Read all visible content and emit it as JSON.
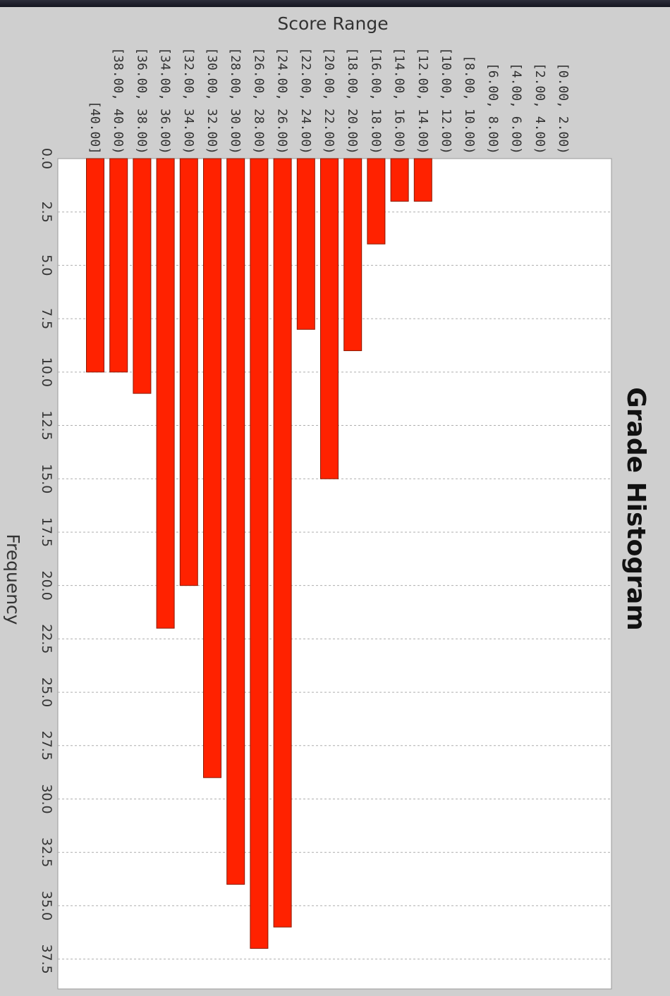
{
  "chart_data": {
    "type": "bar",
    "orientation": "rotated-90-clockwise",
    "title": "Grade Histogram",
    "xlabel": "Score Range",
    "ylabel": "Frequency",
    "categories": [
      "[40.00]",
      "[38.00, 40.00)",
      "[36.00, 38.00)",
      "[34.00, 36.00)",
      "[32.00, 34.00)",
      "[30.00, 32.00)",
      "[28.00, 30.00)",
      "[26.00, 28.00)",
      "[24.00, 26.00)",
      "[22.00, 24.00)",
      "[20.00, 22.00)",
      "[18.00, 20.00)",
      "[16.00, 18.00)",
      "[14.00, 16.00)",
      "[12.00, 14.00)",
      "[10.00, 12.00)",
      "[8.00, 10.00)",
      "[6.00, 8.00)",
      "[4.00, 6.00)",
      "[2.00, 4.00)",
      "[0.00, 2.00)"
    ],
    "values": [
      10,
      10,
      11,
      22,
      20,
      29,
      34,
      37,
      36,
      8,
      15,
      9,
      4,
      2,
      2,
      0,
      0,
      0,
      0,
      0,
      0
    ],
    "ylim": [
      0,
      38.9
    ],
    "yticks": [
      "0.0",
      "2.5",
      "5.0",
      "7.5",
      "10.0",
      "12.5",
      "15.0",
      "17.5",
      "20.0",
      "22.5",
      "25.0",
      "27.5",
      "30.0",
      "32.5",
      "35.0",
      "37.5"
    ],
    "grid": true,
    "bar_color": "#ff2200",
    "background_color": "#ffffff"
  }
}
